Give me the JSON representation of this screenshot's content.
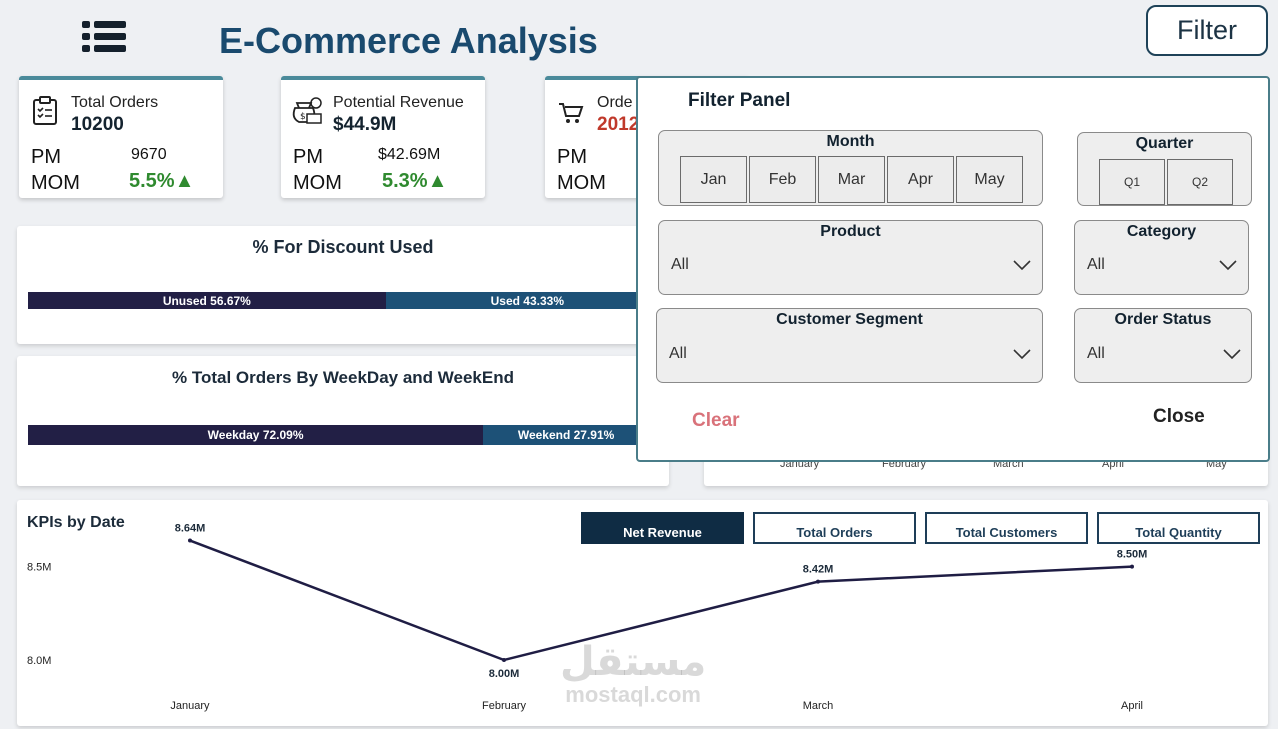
{
  "header": {
    "title": "E-Commerce Analysis",
    "filter_label": "Filter"
  },
  "kpis": [
    {
      "icon": "clipboard-icon",
      "label": "Total Orders",
      "value": "10200",
      "pm_label": "PM",
      "pm_value": "9670",
      "mom_label": "MOM",
      "mom_value": "5.5%▲"
    },
    {
      "icon": "money-bag-icon",
      "label": "Potential Revenue",
      "value": "$44.9M",
      "pm_label": "PM",
      "pm_value": "$42.69M",
      "mom_label": "MOM",
      "mom_value": "5.3%▲"
    },
    {
      "icon": "cart-icon",
      "label": "Orde",
      "value": "2012",
      "pm_label": "PM",
      "mom_label": "MOM"
    }
  ],
  "discount_panel": {
    "title": "% For Discount Used",
    "segments": [
      {
        "label": "Unused 56.67%",
        "value": 56.67
      },
      {
        "label": "Used 43.33%",
        "value": 43.33
      }
    ]
  },
  "weekday_panel": {
    "title": "% Total Orders By WeekDay and WeekEnd",
    "segments": [
      {
        "label": "Weekday 72.09%",
        "value": 72.09
      },
      {
        "label": "Weekend 27.91%",
        "value": 27.91
      }
    ]
  },
  "background_axis": {
    "months": [
      "January",
      "February",
      "March",
      "April",
      "May"
    ]
  },
  "kpis_by_date": {
    "title": "KPIs by Date",
    "tabs": [
      "Net Revenue",
      "Total Orders",
      "Total Customers",
      "Total Quantity"
    ],
    "active_tab": "Net Revenue"
  },
  "chart_data": {
    "type": "line",
    "x": [
      "January",
      "February",
      "March",
      "April"
    ],
    "series": [
      {
        "values": [
          8.64,
          8.0,
          8.42,
          8.5
        ],
        "labels": [
          "8.64M",
          "8.00M",
          "8.42M",
          "8.50M"
        ]
      }
    ],
    "yticks": [
      {
        "value": 8.5,
        "label": "8.5M"
      },
      {
        "value": 8.0,
        "label": "8.0M"
      }
    ],
    "ylim": [
      7.85,
      8.75
    ],
    "grid": false,
    "line_color": "#1f1d44"
  },
  "filter_panel": {
    "title": "Filter Panel",
    "month": {
      "title": "Month",
      "options": [
        "Jan",
        "Feb",
        "Mar",
        "Apr",
        "May"
      ]
    },
    "quarter": {
      "title": "Quarter",
      "options": [
        "Q1",
        "Q2"
      ]
    },
    "product": {
      "title": "Product",
      "value": "All"
    },
    "category": {
      "title": "Category",
      "value": "All"
    },
    "customer_segment": {
      "title": "Customer Segment",
      "value": "All"
    },
    "order_status": {
      "title": "Order Status",
      "value": "All"
    },
    "clear_label": "Clear",
    "close_label": "Close"
  },
  "watermark": {
    "arabic": "مستقل",
    "latin": "mostaql.com"
  }
}
